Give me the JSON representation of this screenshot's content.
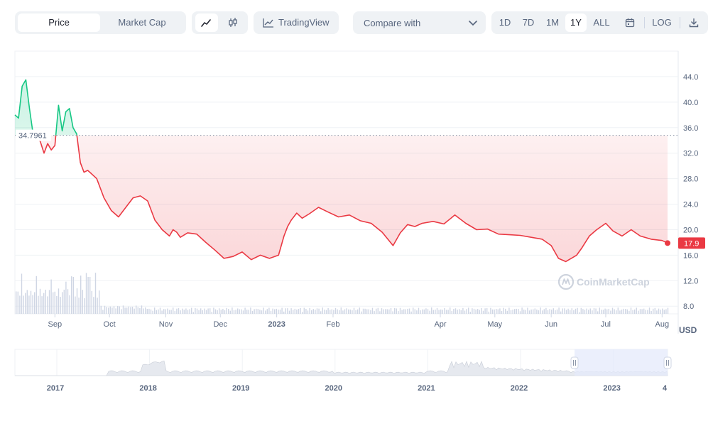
{
  "toolbar": {
    "tabs": [
      {
        "label": "Price",
        "active": true
      },
      {
        "label": "Market Cap",
        "active": false
      }
    ],
    "chart_styles": [
      {
        "icon": "line-chart-icon",
        "active": true
      },
      {
        "icon": "candlestick-icon",
        "active": false
      }
    ],
    "tradingview_label": "TradingView",
    "compare_label": "Compare with",
    "ranges": [
      {
        "label": "1D",
        "active": false
      },
      {
        "label": "7D",
        "active": false
      },
      {
        "label": "1M",
        "active": false
      },
      {
        "label": "1Y",
        "active": true
      },
      {
        "label": "ALL",
        "active": false
      }
    ],
    "log_label": "LOG"
  },
  "colors": {
    "up": "#16c784",
    "down": "#ea3943",
    "accent_range": "#e4e9fb",
    "grid": "#eff2f5",
    "text": "#58667e"
  },
  "watermark": "CoinMarketCap",
  "currency_label": "USD",
  "chart_data": [
    {
      "type": "line",
      "title": "",
      "y_ticks": [
        8.0,
        12.0,
        16.0,
        20.0,
        24.0,
        28.0,
        32.0,
        36.0,
        40.0,
        44.0
      ],
      "ylim": [
        6.8,
        48.0
      ],
      "x_ticks": [
        "Sep",
        "Oct",
        "Nov",
        "Dec",
        "2023",
        "Feb",
        "Apr",
        "May",
        "Jun",
        "Jul",
        "Aug"
      ],
      "reference_price": "34.7961",
      "reference_value": 34.7961,
      "current_price": "17.9",
      "current_value": 17.9,
      "grid": true,
      "series": [
        {
          "x": [
            "2022-08-10",
            "2022-08-12",
            "2022-08-14",
            "2022-08-16",
            "2022-08-18",
            "2022-08-20",
            "2022-08-22",
            "2022-08-24",
            "2022-08-26",
            "2022-08-28",
            "2022-08-30",
            "2022-09-01",
            "2022-09-03",
            "2022-09-05",
            "2022-09-07",
            "2022-09-09",
            "2022-09-11",
            "2022-09-13",
            "2022-09-15",
            "2022-09-17",
            "2022-09-19",
            "2022-09-21",
            "2022-09-24",
            "2022-09-28",
            "2022-10-02",
            "2022-10-06",
            "2022-10-10",
            "2022-10-14",
            "2022-10-18",
            "2022-10-22",
            "2022-10-26",
            "2022-10-30",
            "2022-11-03",
            "2022-11-05",
            "2022-11-07",
            "2022-11-09",
            "2022-11-13",
            "2022-11-18",
            "2022-11-23",
            "2022-11-28",
            "2022-12-03",
            "2022-12-08",
            "2022-12-13",
            "2022-12-18",
            "2022-12-23",
            "2022-12-28",
            "2023-01-02",
            "2023-01-05",
            "2023-01-07",
            "2023-01-09",
            "2023-01-12",
            "2023-01-15",
            "2023-01-19",
            "2023-01-24",
            "2023-01-29",
            "2023-02-04",
            "2023-02-10",
            "2023-02-16",
            "2023-02-22",
            "2023-02-28",
            "2023-03-06",
            "2023-03-10",
            "2023-03-14",
            "2023-03-18",
            "2023-03-22",
            "2023-03-28",
            "2023-04-03",
            "2023-04-09",
            "2023-04-15",
            "2023-04-21",
            "2023-04-27",
            "2023-05-03",
            "2023-05-09",
            "2023-05-15",
            "2023-05-21",
            "2023-05-27",
            "2023-06-01",
            "2023-06-05",
            "2023-06-09",
            "2023-06-12",
            "2023-06-15",
            "2023-06-18",
            "2023-06-22",
            "2023-06-26",
            "2023-07-01",
            "2023-07-05",
            "2023-07-10",
            "2023-07-15",
            "2023-07-20",
            "2023-07-26",
            "2023-08-01",
            "2023-08-04"
          ],
          "y": [
            38.0,
            37.5,
            42.5,
            43.5,
            39.0,
            35.0,
            34.7,
            33.8,
            32.0,
            33.5,
            32.5,
            33.2,
            39.5,
            35.5,
            38.5,
            39.0,
            36.0,
            35.0,
            30.5,
            29.0,
            29.3,
            28.8,
            28.0,
            25.0,
            23.0,
            22.0,
            23.5,
            25.0,
            25.3,
            24.5,
            21.5,
            20.0,
            19.0,
            20.0,
            19.6,
            18.8,
            19.5,
            19.3,
            18.0,
            16.8,
            15.5,
            15.8,
            16.5,
            15.3,
            16.0,
            15.5,
            16.0,
            19.0,
            20.5,
            21.5,
            22.6,
            21.8,
            22.5,
            23.5,
            22.8,
            22.0,
            22.3,
            21.4,
            21.0,
            19.6,
            17.5,
            19.5,
            20.8,
            20.5,
            21.0,
            21.3,
            20.9,
            22.3,
            21.0,
            20.0,
            20.1,
            19.3,
            19.2,
            19.1,
            18.8,
            18.5,
            17.5,
            15.5,
            15.0,
            15.5,
            16.0,
            17.2,
            19.0,
            20.0,
            21.0,
            19.8,
            19.0,
            20.0,
            19.0,
            18.5,
            18.3,
            17.9
          ]
        }
      ]
    },
    {
      "type": "area",
      "title": "",
      "x_ticks": [
        "2017",
        "2018",
        "2019",
        "2020",
        "2021",
        "2022",
        "2023",
        "4"
      ],
      "selected_range": "1Y"
    }
  ]
}
